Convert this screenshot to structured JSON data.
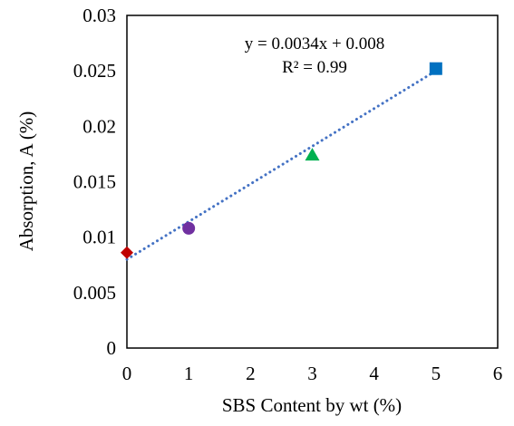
{
  "chart_data": {
    "type": "scatter",
    "xlabel": "SBS Content by wt (%)",
    "ylabel": "Absorption, A (%)",
    "xlim": [
      0,
      6
    ],
    "ylim": [
      0,
      0.03
    ],
    "x_ticks": [
      "0",
      "1",
      "2",
      "3",
      "4",
      "5",
      "6"
    ],
    "y_ticks": [
      "0",
      "0.005",
      "0.01",
      "0.015",
      "0.02",
      "0.025",
      "0.03"
    ],
    "grid": false,
    "legend": "none",
    "points": [
      {
        "x": 0,
        "y": 0.0086,
        "marker": "diamond",
        "color": "#C00000"
      },
      {
        "x": 1,
        "y": 0.0108,
        "marker": "circle",
        "color": "#7030A0"
      },
      {
        "x": 3,
        "y": 0.0174,
        "marker": "triangle",
        "color": "#00B050"
      },
      {
        "x": 5,
        "y": 0.0252,
        "marker": "square",
        "color": "#0070C0"
      }
    ],
    "trendline": {
      "type": "linear",
      "slope": 0.0034,
      "intercept": 0.008,
      "x_range": [
        0,
        5
      ],
      "style": "dotted",
      "color": "#4472C4",
      "equation_label": "y = 0.0034x + 0.008",
      "r2_label": "R² = 0.99"
    }
  }
}
